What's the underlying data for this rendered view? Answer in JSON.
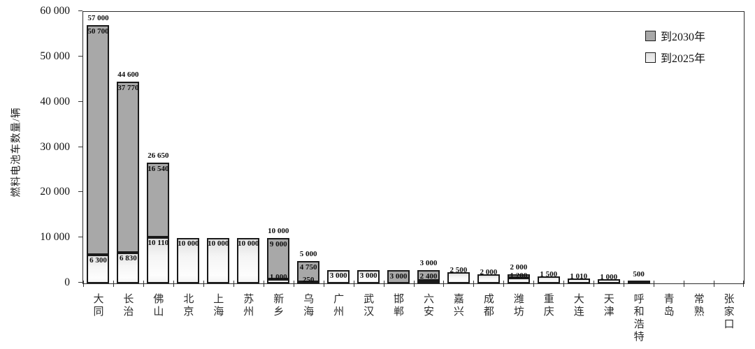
{
  "chart_data": {
    "type": "bar",
    "stacked": true,
    "title": "",
    "xlabel": "",
    "ylabel": "燃料电池车数量/辆",
    "ylim": [
      0,
      60000
    ],
    "grid": false,
    "legend_position": "top-right-inside",
    "y_ticks": [
      {
        "value": 0,
        "label": "0"
      },
      {
        "value": 10000,
        "label": "10 000"
      },
      {
        "value": 20000,
        "label": "20 000"
      },
      {
        "value": 30000,
        "label": "30 000"
      },
      {
        "value": 40000,
        "label": "40 000"
      },
      {
        "value": 50000,
        "label": "50 000"
      },
      {
        "value": 60000,
        "label": "60 000"
      }
    ],
    "series": [
      {
        "name": "到2030年",
        "color": "#a8a8a8"
      },
      {
        "name": "到2025年",
        "color": "#f2f2f2"
      }
    ],
    "cities": [
      {
        "name": "大同",
        "to_2025": 6300,
        "to_2030": 57000,
        "labels": {
          "total": "57 000",
          "seg_2030": "50 700",
          "seg_2025": "6 300"
        }
      },
      {
        "name": "长治",
        "to_2025": 6830,
        "to_2030": 44600,
        "labels": {
          "total": "44 600",
          "seg_2030": "37 770",
          "seg_2025": "6 830"
        }
      },
      {
        "name": "佛山",
        "to_2025": 10110,
        "to_2030": 26650,
        "labels": {
          "total": "26 650",
          "seg_2030": "16 540",
          "seg_2025": "10 110"
        }
      },
      {
        "name": "北京",
        "to_2025": 10000,
        "to_2030": 10000,
        "labels": {
          "total": "",
          "seg_2030": "",
          "seg_2025": "10 000"
        }
      },
      {
        "name": "上海",
        "to_2025": 10000,
        "to_2030": 10000,
        "labels": {
          "total": "",
          "seg_2030": "",
          "seg_2025": "10 000"
        }
      },
      {
        "name": "苏州",
        "to_2025": 10000,
        "to_2030": 10000,
        "labels": {
          "total": "",
          "seg_2030": "",
          "seg_2025": "10 000"
        }
      },
      {
        "name": "新乡",
        "to_2025": 1000,
        "to_2030": 10000,
        "labels": {
          "total": "10 000",
          "seg_2030": "9 000",
          "seg_2025": "1 000"
        }
      },
      {
        "name": "乌海",
        "to_2025": 250,
        "to_2030": 5000,
        "labels": {
          "total": "5 000",
          "seg_2030": "4 750",
          "seg_2025": "250"
        }
      },
      {
        "name": "广州",
        "to_2025": 3000,
        "to_2030": 3000,
        "labels": {
          "total": "",
          "seg_2030": "",
          "seg_2025": "3 000"
        }
      },
      {
        "name": "武汉",
        "to_2025": 3000,
        "to_2030": 3000,
        "labels": {
          "total": "",
          "seg_2030": "",
          "seg_2025": "3 000"
        }
      },
      {
        "name": "邯郸",
        "to_2025": 0,
        "to_2030": 3000,
        "labels": {
          "total": "",
          "seg_2030": "3 000",
          "seg_2025": ""
        }
      },
      {
        "name": "六安",
        "to_2025": 600,
        "to_2030": 3000,
        "labels": {
          "total": "3 000",
          "seg_2030": "2 400",
          "seg_2025": ""
        }
      },
      {
        "name": "嘉兴",
        "to_2025": 2500,
        "to_2030": 2500,
        "labels": {
          "total": "",
          "seg_2030": "",
          "seg_2025": "2 500"
        }
      },
      {
        "name": "成都",
        "to_2025": 2000,
        "to_2030": 2000,
        "labels": {
          "total": "",
          "seg_2030": "",
          "seg_2025": "2 000"
        }
      },
      {
        "name": "潍坊",
        "to_2025": 1200,
        "to_2030": 2000,
        "labels": {
          "total": "2 000",
          "seg_2030": "",
          "seg_2025": "1 200"
        }
      },
      {
        "name": "重庆",
        "to_2025": 1500,
        "to_2030": 1500,
        "labels": {
          "total": "",
          "seg_2030": "",
          "seg_2025": "1 500"
        }
      },
      {
        "name": "大连",
        "to_2025": 1010,
        "to_2030": 1010,
        "labels": {
          "total": "",
          "seg_2030": "",
          "seg_2025": "1 010"
        }
      },
      {
        "name": "天津",
        "to_2025": 1000,
        "to_2030": 1000,
        "labels": {
          "total": "",
          "seg_2030": "",
          "seg_2025": "1 000"
        }
      },
      {
        "name": "呼和浩特",
        "to_2025": 0,
        "to_2030": 500,
        "labels": {
          "total": "500",
          "seg_2030": "",
          "seg_2025": ""
        }
      },
      {
        "name": "青岛",
        "to_2025": 0,
        "to_2030": 0,
        "labels": {
          "total": "",
          "seg_2030": "",
          "seg_2025": ""
        }
      },
      {
        "name": "常熟",
        "to_2025": 0,
        "to_2030": 0,
        "labels": {
          "total": "",
          "seg_2030": "",
          "seg_2025": ""
        }
      },
      {
        "name": "张家口",
        "to_2025": 0,
        "to_2030": 0,
        "labels": {
          "total": "",
          "seg_2030": "",
          "seg_2025": ""
        }
      }
    ],
    "colors": {
      "bar_border": "#1a1a1a",
      "axis_line": "#2e2e2e",
      "label_text": "#0d0d0d"
    }
  }
}
